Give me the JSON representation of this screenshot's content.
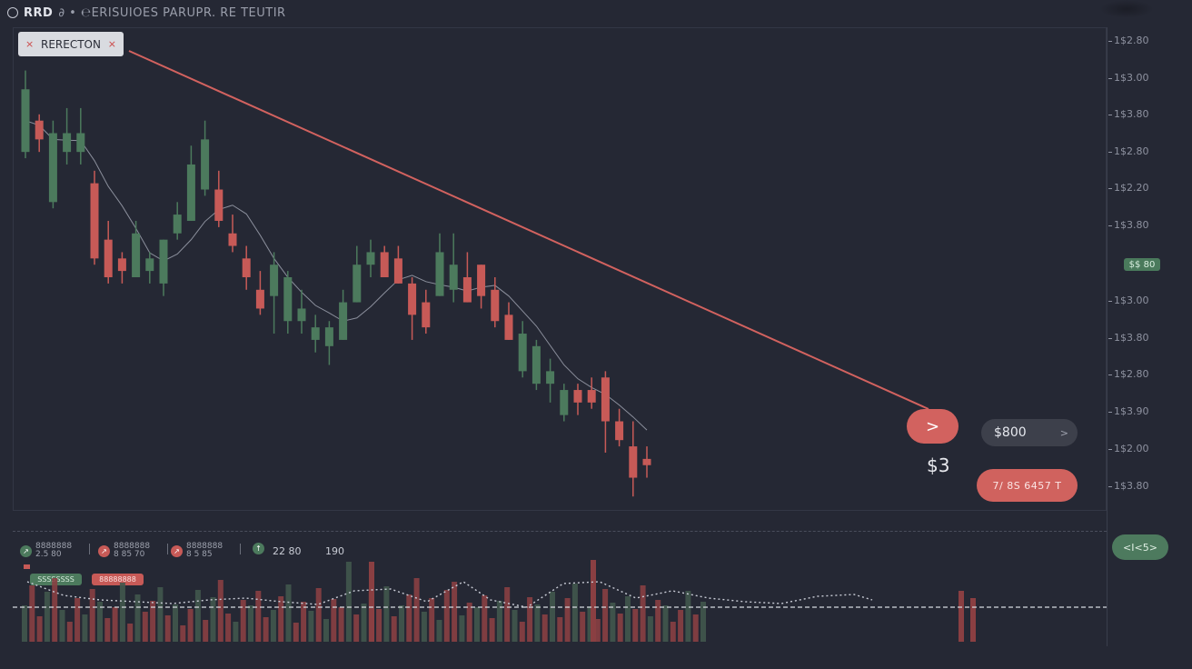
{
  "header": {
    "symbol": "RRD",
    "title_rest": "∂ • ℮ERISUIOES PARUPR. RE TEUTIR"
  },
  "tag": {
    "label": "RERECTON",
    "close": "×",
    "pin": "⨯"
  },
  "y_axis": {
    "labels": [
      "1$2.80",
      "1$3.00",
      "1$3.80",
      "1$2.80",
      "1$2.20",
      "1$3.80",
      "$$ 80",
      "1$3.00",
      "1$3.80",
      "1$2.80",
      "1$3.90",
      "1$2.00",
      "1$3.80"
    ],
    "current_price_chip": "$$ 80"
  },
  "controls": {
    "go_symbol": ">",
    "price_input": "$800",
    "price_arrow": ">",
    "big_price": "$3",
    "order_button": "7/ 8S 6457 T",
    "side_chip": "<I<5>"
  },
  "indicators": [
    {
      "icon": "↗",
      "line1": "8888888",
      "line2": "2.5 80",
      "color": "#4c7a5d"
    },
    {
      "icon": "↗",
      "line1": "8888888",
      "line2": "8 85 70",
      "color": "#c75a57"
    },
    {
      "icon": "↗",
      "line1": "8888888",
      "line2": "8 5 85",
      "color": "#c75a57"
    },
    {
      "icon": "↑",
      "line1": "22 80",
      "line2": "190",
      "color": "#4c7a5d"
    }
  ],
  "chips": {
    "green": "SSSSSSSS",
    "red": "88888888"
  },
  "colors": {
    "bg": "#252834",
    "up": "#4c7a5d",
    "down": "#c75a57",
    "trend": "#d2625f"
  },
  "chart_data": {
    "type": "candlestick",
    "candles": [
      {
        "o": 3.05,
        "c": 2.95,
        "h": 3.08,
        "l": 2.94,
        "dir": "up"
      },
      {
        "o": 2.97,
        "c": 3.0,
        "h": 3.01,
        "l": 2.95,
        "dir": "down"
      },
      {
        "o": 2.98,
        "c": 2.87,
        "h": 3.0,
        "l": 2.86,
        "dir": "up"
      },
      {
        "o": 2.95,
        "c": 2.98,
        "h": 3.02,
        "l": 2.93,
        "dir": "up"
      },
      {
        "o": 2.98,
        "c": 2.95,
        "h": 3.02,
        "l": 2.93,
        "dir": "up"
      },
      {
        "o": 2.9,
        "c": 2.78,
        "h": 2.92,
        "l": 2.77,
        "dir": "down"
      },
      {
        "o": 2.81,
        "c": 2.75,
        "h": 2.84,
        "l": 2.74,
        "dir": "down"
      },
      {
        "o": 2.78,
        "c": 2.76,
        "h": 2.79,
        "l": 2.74,
        "dir": "down"
      },
      {
        "o": 2.75,
        "c": 2.82,
        "h": 2.84,
        "l": 2.75,
        "dir": "up"
      },
      {
        "o": 2.76,
        "c": 2.78,
        "h": 2.79,
        "l": 2.74,
        "dir": "up"
      },
      {
        "o": 2.74,
        "c": 2.81,
        "h": 2.81,
        "l": 2.72,
        "dir": "up"
      },
      {
        "o": 2.82,
        "c": 2.85,
        "h": 2.87,
        "l": 2.81,
        "dir": "up"
      },
      {
        "o": 2.84,
        "c": 2.93,
        "h": 2.96,
        "l": 2.84,
        "dir": "up"
      },
      {
        "o": 2.89,
        "c": 2.97,
        "h": 3.0,
        "l": 2.88,
        "dir": "up"
      },
      {
        "o": 2.89,
        "c": 2.84,
        "h": 2.92,
        "l": 2.83,
        "dir": "down"
      },
      {
        "o": 2.82,
        "c": 2.8,
        "h": 2.85,
        "l": 2.79,
        "dir": "down"
      },
      {
        "o": 2.78,
        "c": 2.75,
        "h": 2.8,
        "l": 2.73,
        "dir": "down"
      },
      {
        "o": 2.73,
        "c": 2.7,
        "h": 2.76,
        "l": 2.69,
        "dir": "down"
      },
      {
        "o": 2.72,
        "c": 2.77,
        "h": 2.79,
        "l": 2.66,
        "dir": "up"
      },
      {
        "o": 2.68,
        "c": 2.75,
        "h": 2.76,
        "l": 2.66,
        "dir": "up"
      },
      {
        "o": 2.7,
        "c": 2.68,
        "h": 2.73,
        "l": 2.66,
        "dir": "up"
      },
      {
        "o": 2.65,
        "c": 2.67,
        "h": 2.69,
        "l": 2.63,
        "dir": "up"
      },
      {
        "o": 2.64,
        "c": 2.67,
        "h": 2.68,
        "l": 2.61,
        "dir": "up"
      },
      {
        "o": 2.65,
        "c": 2.71,
        "h": 2.73,
        "l": 2.65,
        "dir": "up"
      },
      {
        "o": 2.71,
        "c": 2.77,
        "h": 2.8,
        "l": 2.71,
        "dir": "up"
      },
      {
        "o": 2.77,
        "c": 2.79,
        "h": 2.81,
        "l": 2.75,
        "dir": "up"
      },
      {
        "o": 2.79,
        "c": 2.75,
        "h": 2.8,
        "l": 2.75,
        "dir": "down"
      },
      {
        "o": 2.78,
        "c": 2.74,
        "h": 2.8,
        "l": 2.74,
        "dir": "down"
      },
      {
        "o": 2.74,
        "c": 2.69,
        "h": 2.75,
        "l": 2.65,
        "dir": "down"
      },
      {
        "o": 2.71,
        "c": 2.67,
        "h": 2.73,
        "l": 2.66,
        "dir": "down"
      },
      {
        "o": 2.72,
        "c": 2.79,
        "h": 2.82,
        "l": 2.72,
        "dir": "up"
      },
      {
        "o": 2.77,
        "c": 2.73,
        "h": 2.82,
        "l": 2.71,
        "dir": "up"
      },
      {
        "o": 2.71,
        "c": 2.75,
        "h": 2.79,
        "l": 2.71,
        "dir": "down"
      },
      {
        "o": 2.77,
        "c": 2.72,
        "h": 2.77,
        "l": 2.7,
        "dir": "down"
      },
      {
        "o": 2.73,
        "c": 2.68,
        "h": 2.75,
        "l": 2.67,
        "dir": "down"
      },
      {
        "o": 2.69,
        "c": 2.65,
        "h": 2.71,
        "l": 2.65,
        "dir": "down"
      },
      {
        "o": 2.66,
        "c": 2.6,
        "h": 2.68,
        "l": 2.59,
        "dir": "up"
      },
      {
        "o": 2.64,
        "c": 2.58,
        "h": 2.65,
        "l": 2.57,
        "dir": "up"
      },
      {
        "o": 2.6,
        "c": 2.58,
        "h": 2.62,
        "l": 2.55,
        "dir": "up"
      },
      {
        "o": 2.57,
        "c": 2.53,
        "h": 2.58,
        "l": 2.52,
        "dir": "up"
      },
      {
        "o": 2.55,
        "c": 2.57,
        "h": 2.58,
        "l": 2.53,
        "dir": "down"
      },
      {
        "o": 2.57,
        "c": 2.55,
        "h": 2.59,
        "l": 2.54,
        "dir": "down"
      },
      {
        "o": 2.59,
        "c": 2.52,
        "h": 2.6,
        "l": 2.47,
        "dir": "down"
      },
      {
        "o": 2.52,
        "c": 2.49,
        "h": 2.54,
        "l": 2.48,
        "dir": "down"
      },
      {
        "o": 2.48,
        "c": 2.43,
        "h": 2.52,
        "l": 2.4,
        "dir": "down"
      },
      {
        "o": 2.46,
        "c": 2.45,
        "h": 2.48,
        "l": 2.43,
        "dir": "down"
      }
    ]
  }
}
